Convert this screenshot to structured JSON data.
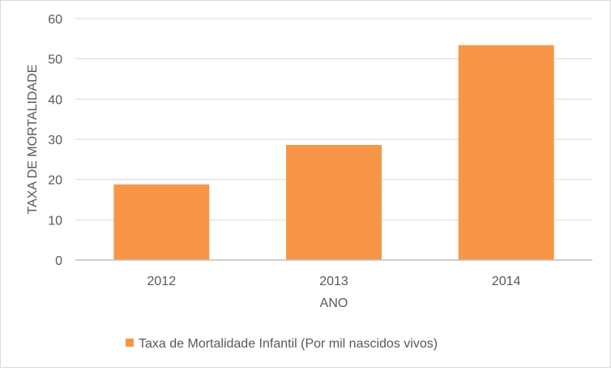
{
  "chart_data": {
    "type": "bar",
    "title": "",
    "categories": [
      "2012",
      "2013",
      "2014"
    ],
    "series": [
      {
        "name": "Taxa de Mortalidade Infantil (Por mil nascidos vivos)",
        "values": [
          18.8,
          28.6,
          53.4
        ]
      }
    ],
    "xlabel": "ANO",
    "ylabel": "TAXA DE MORTALIDADE",
    "ylim": [
      0,
      60
    ],
    "yticks": [
      "0",
      "10",
      "20",
      "30",
      "40",
      "50",
      "60"
    ],
    "grid": true,
    "legend": "bottom",
    "colors": {
      "bar": "#F79646",
      "grid": "#d9d9d9",
      "axis": "#bfbfbf",
      "text": "#595959"
    }
  }
}
